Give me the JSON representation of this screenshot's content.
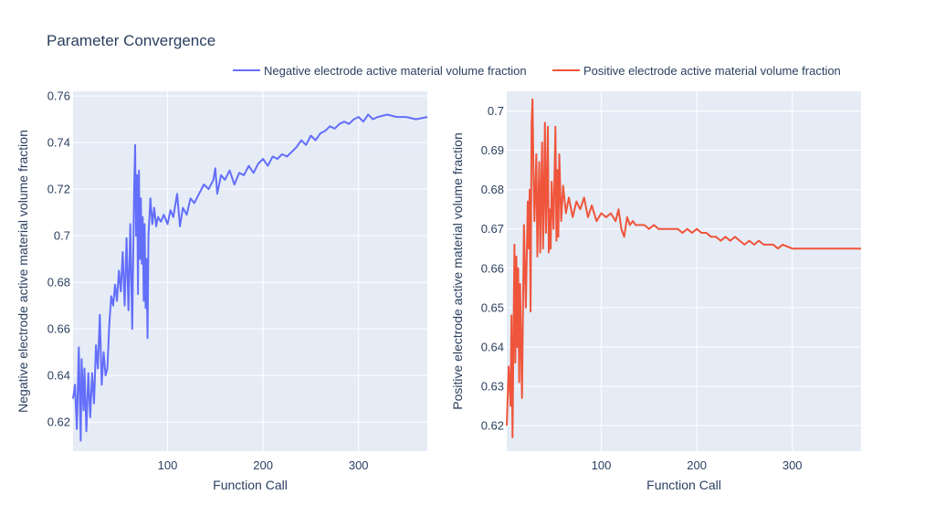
{
  "chart_data": [
    {
      "type": "line",
      "title": "Parameter Convergence",
      "xlabel": "Function Call",
      "ylabel": "Negative electrode active material volume fraction",
      "xlim": [
        1,
        372
      ],
      "ylim": [
        0.6075,
        0.762
      ],
      "xticks": [
        100,
        200,
        300
      ],
      "yticks": [
        0.62,
        0.64,
        0.66,
        0.68,
        0.7,
        0.72,
        0.74,
        0.76
      ],
      "ytick_labels": [
        "0.62",
        "0.64",
        "0.66",
        "0.68",
        "0.7",
        "0.72",
        "0.74",
        "0.76"
      ],
      "grid": true,
      "legend": "top-right",
      "series": [
        {
          "name": "Negative electrode active material volume fraction",
          "color": "#636efa",
          "x": [
            1,
            3,
            5,
            7,
            9,
            10,
            12,
            13,
            15,
            17,
            19,
            21,
            23,
            25,
            27,
            29,
            31,
            33,
            35,
            37,
            39,
            41,
            43,
            45,
            47,
            49,
            51,
            53,
            55,
            57,
            59,
            61,
            63,
            65,
            66,
            67,
            68,
            69,
            70,
            71,
            72,
            73,
            74,
            75,
            76,
            77,
            78,
            79,
            80,
            82,
            84,
            86,
            88,
            90,
            93,
            96,
            100,
            103,
            106,
            110,
            113,
            116,
            120,
            124,
            128,
            133,
            138,
            143,
            148,
            150,
            152,
            156,
            160,
            165,
            170,
            175,
            180,
            185,
            190,
            195,
            200,
            205,
            210,
            215,
            220,
            225,
            230,
            235,
            240,
            245,
            250,
            255,
            260,
            265,
            270,
            275,
            280,
            285,
            290,
            295,
            300,
            305,
            310,
            315,
            320,
            330,
            340,
            350,
            360,
            372
          ],
          "y": [
            0.63,
            0.636,
            0.617,
            0.652,
            0.612,
            0.647,
            0.625,
            0.643,
            0.616,
            0.641,
            0.622,
            0.641,
            0.628,
            0.653,
            0.643,
            0.666,
            0.636,
            0.65,
            0.64,
            0.643,
            0.662,
            0.674,
            0.67,
            0.679,
            0.672,
            0.685,
            0.676,
            0.693,
            0.67,
            0.699,
            0.668,
            0.705,
            0.66,
            0.72,
            0.739,
            0.7,
            0.726,
            0.675,
            0.728,
            0.69,
            0.716,
            0.688,
            0.708,
            0.672,
            0.705,
            0.669,
            0.69,
            0.656,
            0.7,
            0.716,
            0.705,
            0.712,
            0.704,
            0.708,
            0.706,
            0.709,
            0.705,
            0.711,
            0.708,
            0.718,
            0.704,
            0.712,
            0.709,
            0.716,
            0.714,
            0.718,
            0.722,
            0.72,
            0.724,
            0.729,
            0.718,
            0.726,
            0.724,
            0.728,
            0.722,
            0.727,
            0.726,
            0.73,
            0.727,
            0.731,
            0.733,
            0.73,
            0.734,
            0.733,
            0.735,
            0.734,
            0.736,
            0.738,
            0.741,
            0.739,
            0.743,
            0.741,
            0.744,
            0.745,
            0.747,
            0.746,
            0.748,
            0.749,
            0.748,
            0.75,
            0.751,
            0.749,
            0.752,
            0.75,
            0.751,
            0.752,
            0.751,
            0.751,
            0.75,
            0.751
          ]
        }
      ]
    },
    {
      "type": "line",
      "title": "",
      "xlabel": "Function Call",
      "ylabel": "Positive electrode active material volume fraction",
      "xlim": [
        1,
        372
      ],
      "ylim": [
        0.6135,
        0.705
      ],
      "xticks": [
        100,
        200,
        300
      ],
      "yticks": [
        0.62,
        0.63,
        0.64,
        0.65,
        0.66,
        0.67,
        0.68,
        0.69,
        0.7
      ],
      "ytick_labels": [
        "0.62",
        "0.63",
        "0.64",
        "0.65",
        "0.66",
        "0.67",
        "0.68",
        "0.69",
        "0.7"
      ],
      "grid": true,
      "legend": "top-right",
      "series": [
        {
          "name": "Positive electrode active material volume fraction",
          "color": "#ef553b",
          "x": [
            1,
            3,
            5,
            6,
            7,
            9,
            10,
            11,
            12,
            13,
            14,
            15,
            17,
            19,
            21,
            23,
            24,
            25,
            26,
            27,
            28,
            29,
            30,
            32,
            33,
            34,
            35,
            36,
            38,
            39,
            40,
            41,
            42,
            43,
            44,
            45,
            46,
            47,
            48,
            50,
            52,
            53,
            54,
            55,
            56,
            58,
            60,
            63,
            66,
            70,
            74,
            78,
            82,
            86,
            90,
            95,
            100,
            105,
            110,
            115,
            118,
            121,
            124,
            127,
            130,
            133,
            136,
            140,
            145,
            150,
            155,
            160,
            165,
            170,
            175,
            180,
            185,
            190,
            195,
            200,
            205,
            210,
            215,
            220,
            225,
            230,
            235,
            240,
            245,
            250,
            255,
            260,
            265,
            270,
            275,
            280,
            285,
            290,
            300,
            310,
            320,
            330,
            340,
            350,
            360,
            372
          ],
          "y": [
            0.62,
            0.635,
            0.625,
            0.648,
            0.617,
            0.666,
            0.636,
            0.663,
            0.64,
            0.66,
            0.631,
            0.656,
            0.627,
            0.671,
            0.65,
            0.677,
            0.665,
            0.68,
            0.649,
            0.697,
            0.703,
            0.684,
            0.672,
            0.689,
            0.663,
            0.676,
            0.687,
            0.664,
            0.692,
            0.665,
            0.679,
            0.697,
            0.669,
            0.68,
            0.696,
            0.664,
            0.675,
            0.665,
            0.682,
            0.67,
            0.696,
            0.667,
            0.685,
            0.668,
            0.689,
            0.672,
            0.681,
            0.674,
            0.678,
            0.673,
            0.677,
            0.675,
            0.678,
            0.673,
            0.676,
            0.672,
            0.674,
            0.673,
            0.674,
            0.672,
            0.675,
            0.67,
            0.668,
            0.673,
            0.671,
            0.672,
            0.671,
            0.671,
            0.671,
            0.67,
            0.671,
            0.67,
            0.67,
            0.67,
            0.67,
            0.67,
            0.669,
            0.67,
            0.669,
            0.67,
            0.669,
            0.669,
            0.668,
            0.668,
            0.667,
            0.668,
            0.667,
            0.668,
            0.667,
            0.666,
            0.667,
            0.666,
            0.667,
            0.666,
            0.666,
            0.666,
            0.665,
            0.666,
            0.665,
            0.665,
            0.665,
            0.665,
            0.665,
            0.665,
            0.665,
            0.665
          ]
        }
      ]
    }
  ]
}
